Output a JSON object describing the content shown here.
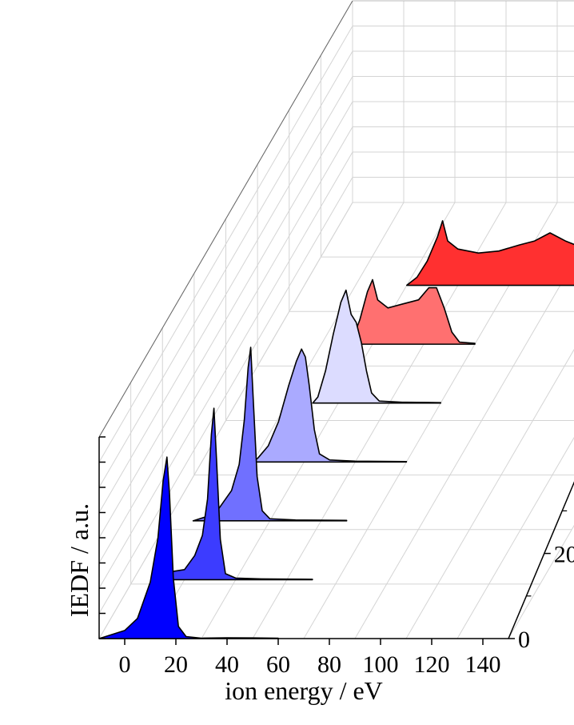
{
  "chart_data": {
    "type": "area",
    "xlabel": "ion energy / eV",
    "zlabel": "IEDF / a.u.",
    "x_ticks": [
      "0",
      "20",
      "40",
      "60",
      "80",
      "100",
      "120",
      "140"
    ],
    "y_ticks_visible": [
      "0",
      "20"
    ],
    "xlim": [
      -10,
      150
    ],
    "grid": true,
    "series": [
      {
        "color": "#0000ff",
        "values": [
          [
            -10,
            0
          ],
          [
            0,
            0.04
          ],
          [
            5,
            0.1
          ],
          [
            10,
            0.28
          ],
          [
            13,
            0.5
          ],
          [
            15,
            0.78
          ],
          [
            16.5,
            0.9
          ],
          [
            17.5,
            0.72
          ],
          [
            19,
            0.3
          ],
          [
            21,
            0.06
          ],
          [
            24,
            0.01
          ],
          [
            30,
            0.002
          ],
          [
            40,
            0.004
          ],
          [
            50,
            0.003
          ],
          [
            60,
            0.002
          ]
        ]
      },
      {
        "color": "#3c3cff",
        "values": [
          [
            0,
            0
          ],
          [
            5,
            0.04
          ],
          [
            10,
            0.05
          ],
          [
            14,
            0.12
          ],
          [
            17,
            0.22
          ],
          [
            19,
            0.4
          ],
          [
            20.5,
            0.72
          ],
          [
            21.5,
            0.85
          ],
          [
            22.5,
            0.6
          ],
          [
            24,
            0.2
          ],
          [
            26,
            0.03
          ],
          [
            30,
            0.008
          ],
          [
            40,
            0.004
          ],
          [
            50,
            0.003
          ],
          [
            60,
            0.002
          ]
        ]
      },
      {
        "color": "#7070ff",
        "values": [
          [
            0,
            0
          ],
          [
            5,
            0.02
          ],
          [
            10,
            0.06
          ],
          [
            15,
            0.15
          ],
          [
            18,
            0.28
          ],
          [
            20,
            0.5
          ],
          [
            21.5,
            0.76
          ],
          [
            22.5,
            0.86
          ],
          [
            23.5,
            0.6
          ],
          [
            25,
            0.22
          ],
          [
            27,
            0.05
          ],
          [
            30,
            0.01
          ],
          [
            40,
            0.004
          ],
          [
            50,
            0.003
          ],
          [
            60,
            0.002
          ]
        ]
      },
      {
        "color": "#aaaaff",
        "values": [
          [
            10,
            0
          ],
          [
            12,
            0.02
          ],
          [
            16,
            0.08
          ],
          [
            20,
            0.2
          ],
          [
            24,
            0.38
          ],
          [
            27,
            0.5
          ],
          [
            29,
            0.56
          ],
          [
            30.5,
            0.52
          ],
          [
            32,
            0.38
          ],
          [
            34,
            0.16
          ],
          [
            36,
            0.04
          ],
          [
            40,
            0.01
          ],
          [
            50,
            0.004
          ],
          [
            60,
            0.003
          ],
          [
            70,
            0.002
          ]
        ]
      },
      {
        "color": "#dcdcff",
        "values": [
          [
            20,
            0
          ],
          [
            22,
            0.03
          ],
          [
            25,
            0.16
          ],
          [
            28,
            0.34
          ],
          [
            31,
            0.5
          ],
          [
            33,
            0.56
          ],
          [
            35,
            0.44
          ],
          [
            37,
            0.4
          ],
          [
            39,
            0.3
          ],
          [
            41,
            0.16
          ],
          [
            43,
            0.05
          ],
          [
            46,
            0.01
          ],
          [
            55,
            0.004
          ],
          [
            65,
            0.003
          ],
          [
            70,
            0.002
          ]
        ]
      },
      {
        "color": "#ff7070",
        "values": [
          [
            20,
            0
          ],
          [
            22,
            0.02
          ],
          [
            25,
            0.12
          ],
          [
            28,
            0.26
          ],
          [
            30,
            0.32
          ],
          [
            32,
            0.22
          ],
          [
            36,
            0.18
          ],
          [
            42,
            0.2
          ],
          [
            48,
            0.22
          ],
          [
            52,
            0.28
          ],
          [
            55,
            0.28
          ],
          [
            58,
            0.18
          ],
          [
            61,
            0.06
          ],
          [
            64,
            0.01
          ],
          [
            70,
            0.004
          ]
        ]
      },
      {
        "color": "#ff3030",
        "values": [
          [
            30,
            0
          ],
          [
            34,
            0.04
          ],
          [
            38,
            0.12
          ],
          [
            42,
            0.24
          ],
          [
            44,
            0.32
          ],
          [
            46,
            0.22
          ],
          [
            50,
            0.18
          ],
          [
            58,
            0.16
          ],
          [
            66,
            0.17
          ],
          [
            74,
            0.2
          ],
          [
            80,
            0.22
          ],
          [
            86,
            0.26
          ],
          [
            92,
            0.22
          ],
          [
            100,
            0.18
          ]
        ]
      }
    ]
  }
}
